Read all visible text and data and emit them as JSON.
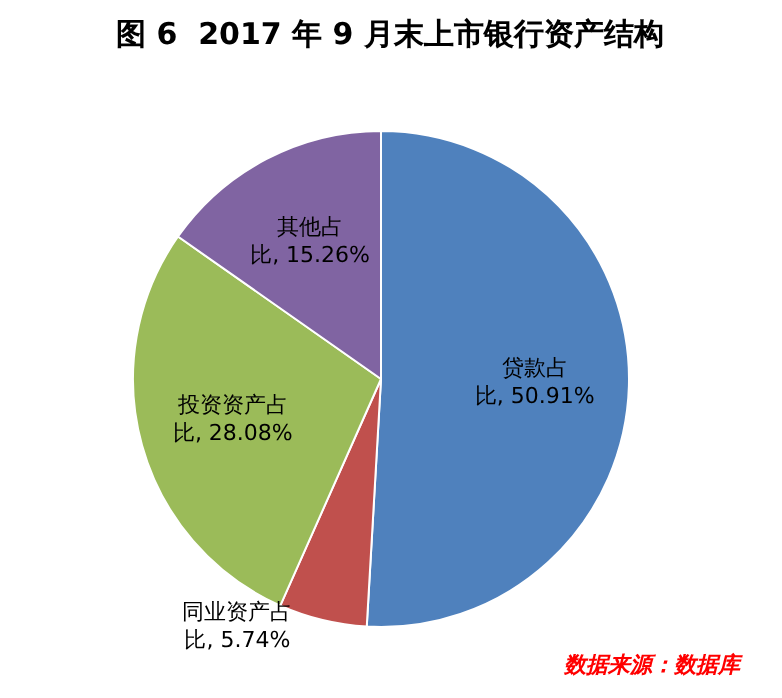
{
  "chart_data": {
    "type": "pie",
    "title": "图 6  2017 年 9 月末上市银行资产结构",
    "categories": [
      "贷款占比",
      "同业资产占比",
      "投资资产占比",
      "其他占比"
    ],
    "values": [
      50.91,
      5.74,
      28.08,
      15.26
    ],
    "value_labels": [
      "50.91%",
      "5.74%",
      "28.08%",
      "15.26%"
    ],
    "colors": [
      "#4f81bd",
      "#c0504d",
      "#9bbb59",
      "#8064a2"
    ],
    "legend": false,
    "annotations": [
      "数据来源：数据库"
    ]
  }
}
